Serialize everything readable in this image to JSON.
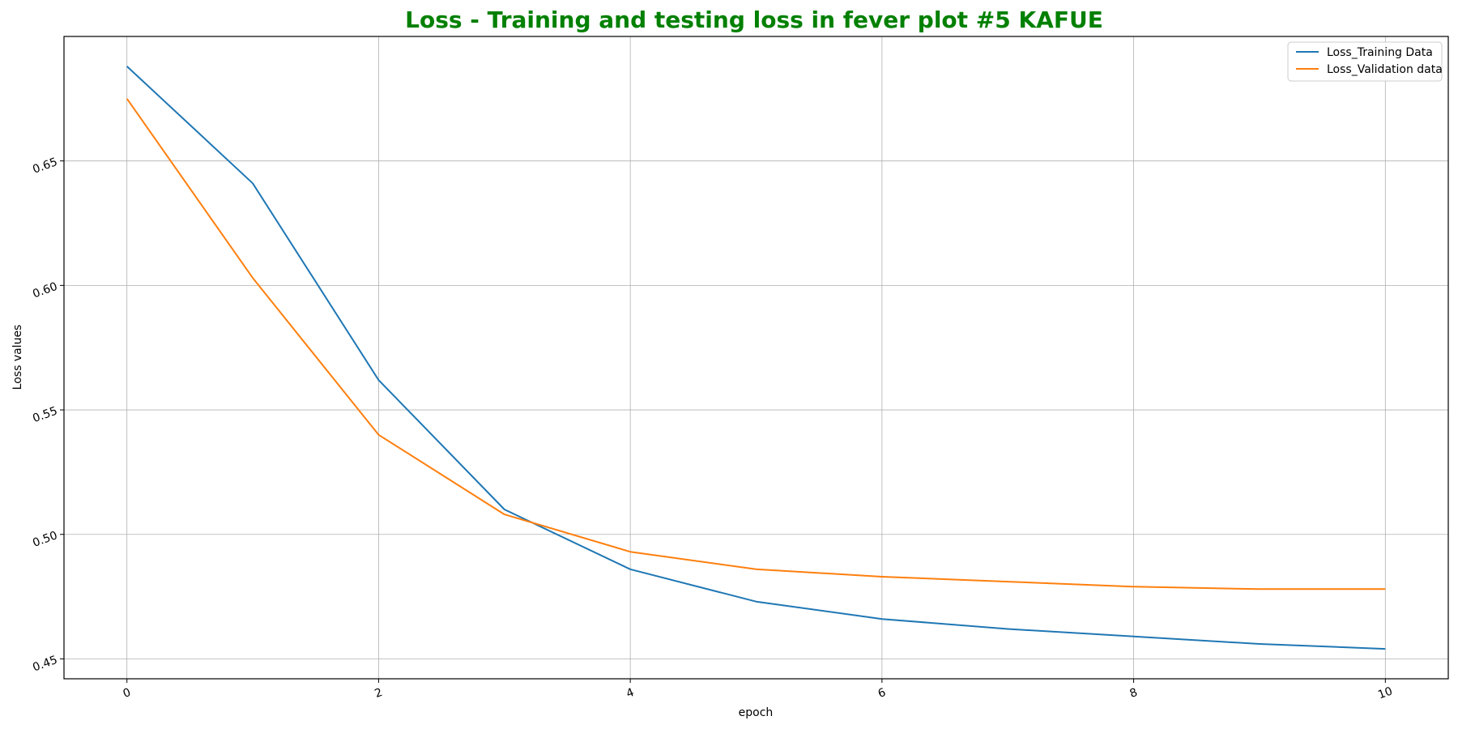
{
  "chart_data": {
    "type": "line",
    "title": "Loss - Training and testing loss in fever plot #5 KAFUE",
    "title_color": "#008000",
    "xlabel": "epoch",
    "ylabel": "Loss values",
    "x": [
      0,
      1,
      2,
      3,
      4,
      5,
      6,
      7,
      8,
      9,
      10
    ],
    "xlim": [
      -0.5,
      10.5
    ],
    "ylim": [
      0.442,
      0.7
    ],
    "xticks": [
      "0",
      "2",
      "4",
      "6",
      "8",
      "10"
    ],
    "yticks": [
      "0.45",
      "0.50",
      "0.55",
      "0.60",
      "0.65"
    ],
    "grid": true,
    "legend_position": "top-right",
    "series": [
      {
        "name": "Loss_Training Data",
        "color": "#1f77b4",
        "values": [
          0.688,
          0.641,
          0.562,
          0.51,
          0.486,
          0.473,
          0.466,
          0.462,
          0.459,
          0.456,
          0.454
        ]
      },
      {
        "name": "Loss_Validation data",
        "color": "#ff7f0e",
        "values": [
          0.675,
          0.603,
          0.54,
          0.508,
          0.493,
          0.486,
          0.483,
          0.481,
          0.479,
          0.478,
          0.478
        ]
      }
    ]
  }
}
